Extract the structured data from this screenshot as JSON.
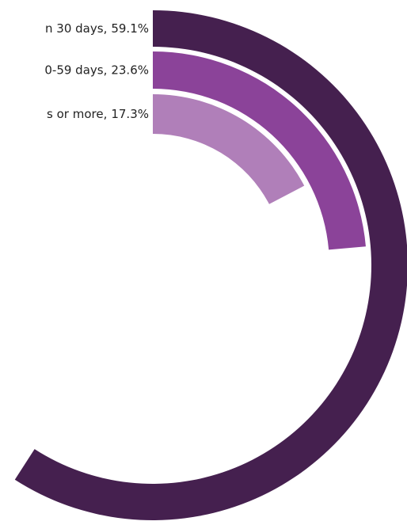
{
  "chart_data": {
    "type": "radial-bar",
    "categories": [
      "n 30 days,",
      "0-59 days,",
      "s or more,"
    ],
    "values": [
      59.1,
      23.6,
      17.3
    ],
    "value_labels": [
      "59.1%",
      "23.6%",
      "17.3%"
    ],
    "colors": [
      "#45204f",
      "#8b4399",
      "#b07fb9"
    ],
    "rlim": [
      0,
      100
    ]
  }
}
